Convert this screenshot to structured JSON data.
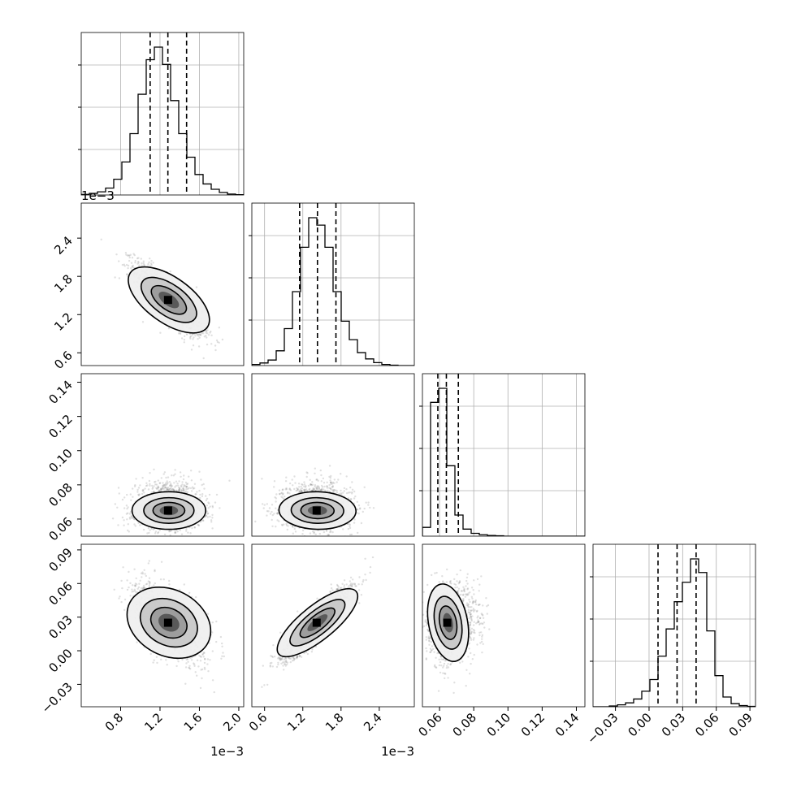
{
  "chart_data": {
    "type": "corner",
    "n_params": 4,
    "params": [
      {
        "id": "p0",
        "lim": [
          0.4,
          2.05
        ],
        "ticks": [
          0.8,
          1.2,
          1.6,
          2.0
        ],
        "tick_labels": [
          "0.8",
          "1.2",
          "1.6",
          "2.0"
        ],
        "offset_label": "1e−3",
        "quantiles": [
          1.1,
          1.28,
          1.47
        ],
        "mean": 1.29,
        "sd": 0.17
      },
      {
        "id": "p1",
        "lim": [
          0.4,
          2.95
        ],
        "ticks": [
          0.6,
          1.2,
          1.8,
          2.4
        ],
        "tick_labels": [
          "0.6",
          "1.2",
          "1.8",
          "2.4"
        ],
        "offset_label": "1e−3",
        "quantiles": [
          1.15,
          1.43,
          1.72
        ],
        "mean": 1.43,
        "sd": 0.27
      },
      {
        "id": "p2",
        "lim": [
          0.05,
          0.145
        ],
        "ticks": [
          0.06,
          0.08,
          0.1,
          0.12,
          0.14
        ],
        "tick_labels": [
          "0.06",
          "0.08",
          "0.10",
          "0.12",
          "0.14"
        ],
        "offset_label": "",
        "quantiles": [
          0.059,
          0.064,
          0.071
        ],
        "mean": 0.065,
        "sd": 0.005
      },
      {
        "id": "p3",
        "lim": [
          -0.05,
          0.095
        ],
        "ticks": [
          -0.03,
          0.0,
          0.03,
          0.06,
          0.09
        ],
        "tick_labels": [
          "−0.03",
          "0.00",
          "0.03",
          "0.06",
          "0.09"
        ],
        "offset_label": "",
        "quantiles": [
          0.008,
          0.025,
          0.042
        ],
        "mean": 0.025,
        "sd": 0.016
      }
    ],
    "correlations": [
      [
        1,
        -0.8,
        0.0,
        -0.55
      ],
      [
        -0.8,
        1,
        -0.05,
        0.9
      ],
      [
        0.0,
        -0.05,
        1,
        0.1
      ],
      [
        -0.55,
        0.9,
        0.1,
        1
      ]
    ],
    "hist_counts": [
      [
        2,
        5,
        10,
        22,
        50,
        105,
        195,
        320,
        430,
        470,
        415,
        300,
        195,
        120,
        65,
        35,
        18,
        8,
        3,
        1
      ],
      [
        3,
        7,
        15,
        40,
        100,
        200,
        320,
        400,
        380,
        320,
        200,
        120,
        70,
        35,
        18,
        8,
        3,
        1,
        0,
        0
      ],
      [
        25,
        380,
        420,
        200,
        60,
        20,
        8,
        4,
        2,
        1,
        0,
        0,
        0,
        0,
        0,
        0,
        0,
        0,
        0,
        0
      ],
      [
        0,
        0,
        2,
        5,
        10,
        20,
        40,
        70,
        130,
        200,
        270,
        320,
        380,
        345,
        195,
        80,
        25,
        8,
        3,
        1
      ]
    ],
    "grid": true
  }
}
